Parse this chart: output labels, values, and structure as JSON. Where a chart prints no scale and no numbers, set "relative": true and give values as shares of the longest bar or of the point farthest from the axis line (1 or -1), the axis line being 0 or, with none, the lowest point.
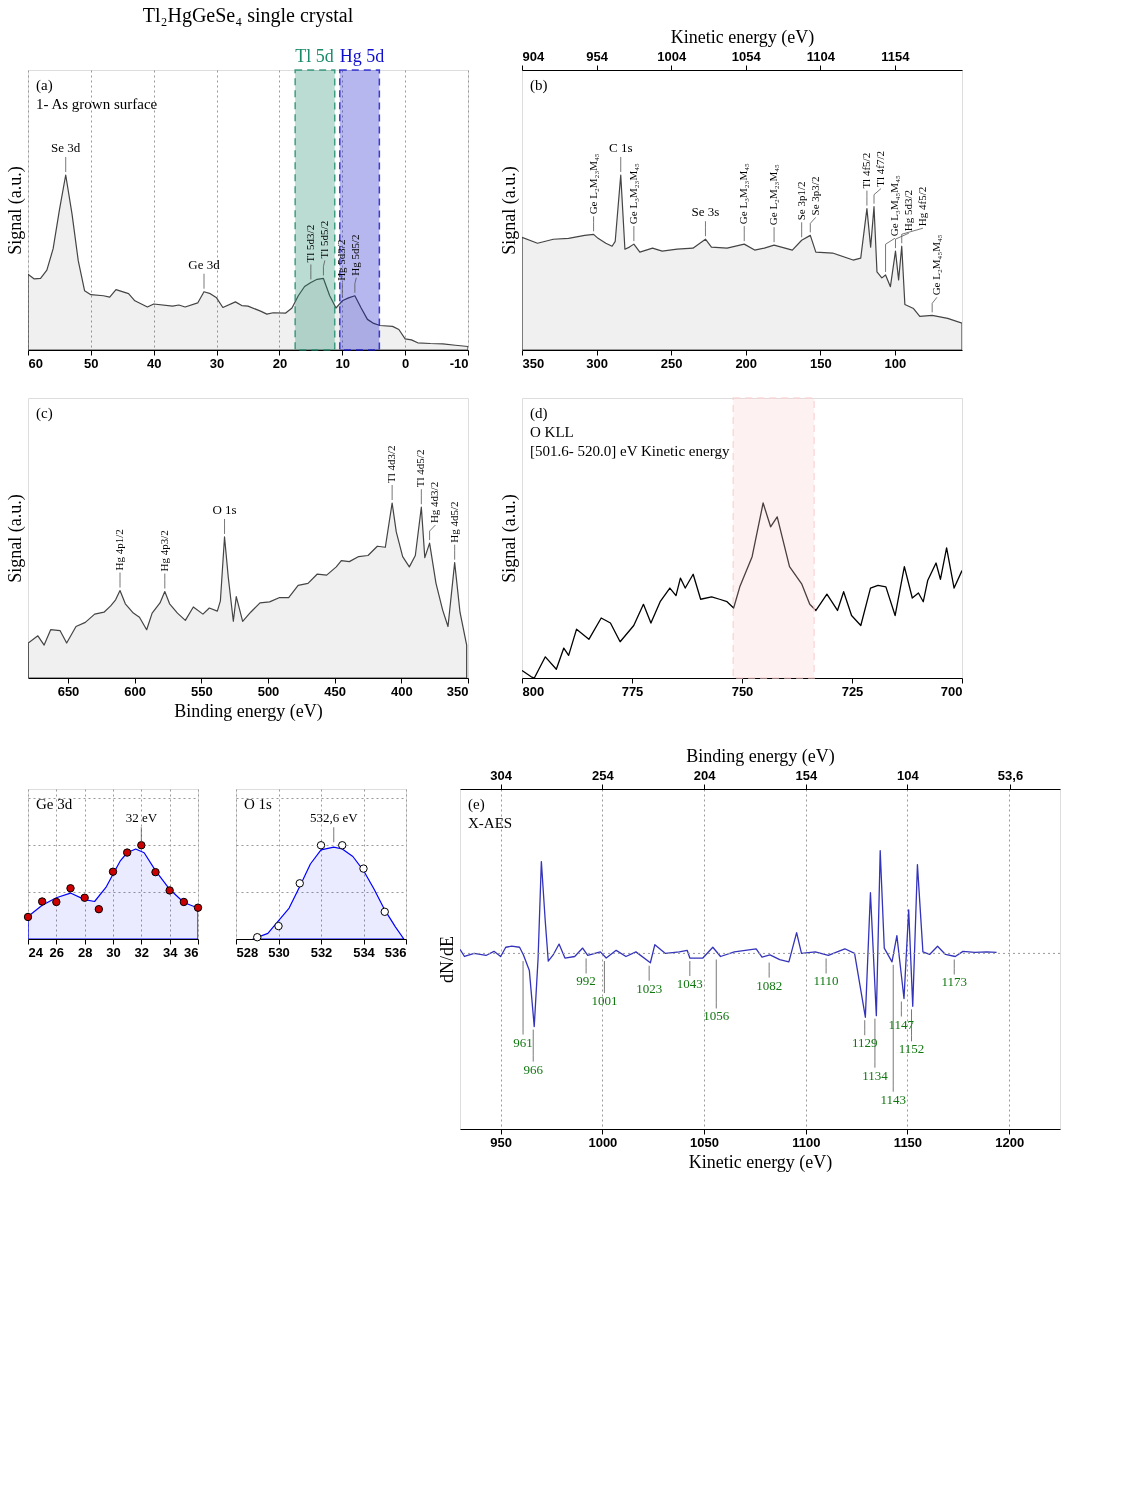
{
  "chart_data": [
    {
      "type": "area",
      "title": "Tl₂HgGeSe₄ single crystal",
      "ylabel": "Signal (a.u.)",
      "relative": true,
      "xlim": [
        60,
        -10
      ],
      "xticks": [
        60,
        50,
        40,
        30,
        20,
        10,
        0,
        -10
      ],
      "grid": "x",
      "series": [
        {
          "color": "#444444",
          "x": [
            60,
            59,
            58,
            57,
            56,
            55,
            54,
            53,
            52,
            51,
            50,
            48,
            47,
            46,
            44,
            43,
            41,
            40,
            37,
            36,
            35,
            33,
            32,
            31,
            30,
            29,
            27,
            26,
            25,
            23,
            22,
            21,
            19,
            18,
            17,
            16,
            15,
            14,
            13,
            12,
            11,
            10,
            9,
            8,
            7,
            6,
            5,
            4,
            2,
            1,
            0,
            -1,
            -2,
            -4,
            -6,
            -8,
            -10
          ],
          "values": [
            0.433,
            0.406,
            0.409,
            0.456,
            0.579,
            0.801,
            1.0,
            0.778,
            0.509,
            0.339,
            0.316,
            0.31,
            0.302,
            0.345,
            0.322,
            0.281,
            0.246,
            0.263,
            0.251,
            0.257,
            0.246,
            0.269,
            0.333,
            0.322,
            0.298,
            0.243,
            0.275,
            0.254,
            0.251,
            0.222,
            0.205,
            0.213,
            0.211,
            0.24,
            0.31,
            0.363,
            0.386,
            0.404,
            0.409,
            0.31,
            0.24,
            0.281,
            0.298,
            0.31,
            0.24,
            0.175,
            0.152,
            0.14,
            0.135,
            0.117,
            0.064,
            0.058,
            0.041,
            0.037,
            0.035,
            0.027,
            0.02
          ]
        }
      ],
      "bands": [
        {
          "axis": "x",
          "from": 17.5,
          "to": 11.2,
          "label": "Tl 5d",
          "color": "#1a8a6a"
        },
        {
          "axis": "x",
          "from": 10.4,
          "to": 4.1,
          "label": "Hg 5d",
          "color": "#1010cc"
        }
      ],
      "annotations": [
        "(a)",
        "1- As grown surface",
        {
          "text": "Se 3d",
          "x": 54,
          "y": 1.0
        },
        {
          "text": "Ge 3d",
          "x": 32,
          "y": 0.333
        },
        {
          "text": "Tl 5d3/2",
          "x": 15,
          "y": 0.386
        },
        {
          "text": "Tl 5d5/2",
          "x": 13,
          "y": 0.409
        },
        {
          "text": "Hg 5d3/2",
          "x": 10,
          "y": 0.281
        },
        {
          "text": "Hg 5d5/2",
          "x": 8,
          "y": 0.31
        }
      ]
    },
    {
      "type": "area",
      "ylabel": "Signal (a.u.)",
      "relative": true,
      "xlim": [
        350,
        55
      ],
      "xticks": [
        350,
        300,
        250,
        200,
        150,
        100
      ],
      "x2lim": [
        904,
        1199
      ],
      "x2ticks": [
        904,
        954,
        1004,
        1054,
        1104,
        1154
      ],
      "x2label": "Kinetic energy (eV)",
      "series": [
        {
          "color": "#444444",
          "x": [
            350,
            339.6,
            329,
            318.8,
            308,
            302,
            299,
            293.8,
            289.6,
            287.5,
            283.8,
            281,
            278,
            275,
            271,
            262.5,
            256,
            246,
            235.4,
            227,
            223,
            212.5,
            201,
            194,
            187.5,
            181,
            168.75,
            162.5,
            156.7,
            153,
            141.7,
            128,
            122.9,
            118.75,
            116.25,
            114,
            112,
            108.75,
            106.25,
            103,
            99.6,
            97.5,
            95.4,
            93.3,
            87.5,
            83.3,
            75,
            64.6,
            55
          ],
          "values": [
            0.644,
            0.61,
            0.633,
            0.638,
            0.655,
            0.661,
            0.638,
            0.61,
            0.593,
            0.621,
            1.0,
            0.576,
            0.588,
            0.605,
            0.559,
            0.582,
            0.565,
            0.576,
            0.582,
            0.633,
            0.588,
            0.582,
            0.605,
            0.571,
            0.582,
            0.599,
            0.571,
            0.627,
            0.655,
            0.559,
            0.554,
            0.514,
            0.525,
            0.808,
            0.588,
            0.819,
            0.446,
            0.412,
            0.429,
            0.362,
            0.565,
            0.401,
            0.593,
            0.26,
            0.237,
            0.192,
            0.198,
            0.181,
            0.153
          ]
        }
      ],
      "annotations": [
        "(b)",
        {
          "text": "Ge L₂M₂₃M₄₅",
          "x": 302,
          "y": 0.661
        },
        {
          "text": "C 1s",
          "x": 283.8,
          "y": 1.0
        },
        {
          "text": "Ge L₃M₂₃M₄₅",
          "x": 275,
          "y": 0.605
        },
        {
          "text": "Se 3s",
          "x": 227,
          "y": 0.633
        },
        {
          "text": "Ge L₃M₂₃M₄₅",
          "x": 201,
          "y": 0.605
        },
        {
          "text": "Ge L₂M₂₃M₄₅",
          "x": 181,
          "y": 0.599
        },
        {
          "text": "Se 3p1/2",
          "x": 162.5,
          "y": 0.627
        },
        {
          "text": "Se 3p3/2",
          "x": 156.7,
          "y": 0.655
        },
        {
          "text": "Tl 4f5/2",
          "x": 118.75,
          "y": 0.808
        },
        {
          "text": "Tl 4f7/2",
          "x": 114,
          "y": 0.819
        },
        {
          "text": "Ge L₃M₄₅M₄₅",
          "x": 106.25,
          "y": 0.429
        },
        {
          "text": "Hg 5d3/2",
          "x": 99.6,
          "y": 0.565
        },
        {
          "text": "Hg 4f5/2",
          "x": 95.4,
          "y": 0.593
        },
        {
          "text": "Ge L₂M₄₅M₄₅",
          "x": 75,
          "y": 0.198
        }
      ]
    },
    {
      "type": "area",
      "ylabel": "Signal (a.u.)",
      "xlabel": "Binding energy (eV)",
      "relative": true,
      "xlim": [
        680,
        350
      ],
      "xticks": [
        650,
        600,
        550,
        500,
        450,
        400,
        350
      ],
      "series": [
        {
          "color": "#444444",
          "x": [
            679.8,
            672.6,
            667.9,
            663,
            656,
            651,
            644,
            637,
            630,
            623,
            618,
            614.3,
            611,
            607,
            601,
            596.4,
            591,
            586.9,
            581,
            577.4,
            573.8,
            567.9,
            562,
            556,
            548.8,
            544,
            538,
            535.7,
            532.6,
            529.8,
            526,
            523.8,
            519,
            513,
            506,
            498.8,
            491.7,
            484.5,
            477.4,
            470,
            463,
            456,
            448.8,
            445,
            439,
            432,
            425,
            418,
            412,
            406.9,
            403.8,
            399,
            394,
            389.5,
            385,
            382.4,
            378.8,
            374,
            369,
            365,
            360,
            356,
            351
          ],
          "values": [
            0.2,
            0.241,
            0.188,
            0.276,
            0.271,
            0.2,
            0.294,
            0.318,
            0.365,
            0.376,
            0.412,
            0.447,
            0.5,
            0.424,
            0.371,
            0.347,
            0.276,
            0.371,
            0.429,
            0.494,
            0.424,
            0.371,
            0.329,
            0.406,
            0.365,
            0.4,
            0.382,
            0.441,
            0.806,
            0.576,
            0.324,
            0.465,
            0.324,
            0.376,
            0.429,
            0.435,
            0.459,
            0.459,
            0.529,
            0.541,
            0.594,
            0.588,
            0.635,
            0.671,
            0.665,
            0.694,
            0.7,
            0.753,
            0.747,
            1.0,
            0.835,
            0.694,
            0.635,
            0.7,
            0.976,
            0.688,
            0.771,
            0.541,
            0.388,
            0.294,
            0.659,
            0.376,
            0.188
          ]
        }
      ],
      "annotations": [
        "(c)",
        {
          "text": "Hg 4p1/2",
          "x": 611,
          "y": 0.5
        },
        {
          "text": "Hg 4p3/2",
          "x": 577.4,
          "y": 0.494
        },
        {
          "text": "O 1s",
          "x": 532.6,
          "y": 0.806
        },
        {
          "text": "Tl 4d3/2",
          "x": 406.9,
          "y": 1.0
        },
        {
          "text": "Tl 4d5/2",
          "x": 385,
          "y": 0.976
        },
        {
          "text": "Hg 4d3/2",
          "x": 378.8,
          "y": 0.771
        },
        {
          "text": "Hg 4d5/2",
          "x": 360,
          "y": 0.659
        }
      ]
    },
    {
      "type": "line",
      "ylabel": "Signal (a.u.)",
      "relative": true,
      "xlim": [
        800,
        700
      ],
      "xticks": [
        800,
        775,
        750,
        725,
        700
      ],
      "series": [
        {
          "color": "#000000",
          "x": [
            800,
            797.9,
            797.2,
            794.7,
            792.2,
            790.5,
            789.4,
            787.6,
            784.8,
            782,
            779.9,
            777.7,
            774.6,
            772.4,
            770.7,
            768.6,
            766.4,
            765,
            764,
            762.9,
            761.1,
            759.4,
            756.9,
            755.1,
            753.4,
            751.9,
            750.5,
            747.7,
            745.2,
            743.5,
            742,
            739.2,
            736.4,
            734.6,
            733.2,
            730.7,
            728.3,
            726.9,
            725.1,
            723,
            720.8,
            719.1,
            717.3,
            715.2,
            713.1,
            711.3,
            709.9,
            708.8,
            707.8,
            705.9,
            704.9,
            703.5,
            701.8,
            700
          ],
          "values": [
            0.043,
            0.007,
            0,
            0.121,
            0.05,
            0.171,
            0.129,
            0.279,
            0.221,
            0.343,
            0.314,
            0.207,
            0.3,
            0.421,
            0.314,
            0.436,
            0.514,
            0.471,
            0.571,
            0.514,
            0.593,
            0.45,
            0.464,
            0.45,
            0.436,
            0.4,
            0.521,
            0.693,
            1.0,
            0.864,
            0.921,
            0.636,
            0.536,
            0.421,
            0.386,
            0.479,
            0.386,
            0.493,
            0.357,
            0.3,
            0.514,
            0.529,
            0.521,
            0.357,
            0.636,
            0.457,
            0.486,
            0.436,
            0.557,
            0.657,
            0.564,
            0.743,
            0.514,
            0.614
          ]
        }
      ],
      "bands": [
        {
          "axis": "x",
          "from": 752,
          "to": 733.6,
          "color": "#f9d2d2"
        }
      ],
      "annotations": [
        "(d)",
        "O KLL",
        "[501.6- 520.0] eV Kinetic energy"
      ]
    },
    {
      "type": "area",
      "relative": true,
      "xlim": [
        24,
        36
      ],
      "xticks": [
        24,
        26,
        28,
        30,
        32,
        34,
        36
      ],
      "grid": true,
      "series": [
        {
          "type": "area",
          "color": "#0000ff",
          "x": [
            24,
            25,
            26,
            27,
            28,
            28.7,
            29.5,
            30,
            30.5,
            31,
            31.6,
            32.2,
            33,
            34,
            35,
            36
          ],
          "values": [
            0.24,
            0.36,
            0.44,
            0.49,
            0.42,
            0.4,
            0.55,
            0.69,
            0.83,
            0.92,
            0.96,
            0.92,
            0.73,
            0.53,
            0.39,
            0.33
          ]
        },
        {
          "type": "scatter",
          "marker": "circle",
          "color": "#cc0000",
          "x": [
            24,
            25,
            26,
            27,
            28,
            29,
            30,
            31,
            32,
            33,
            34,
            35,
            36
          ],
          "values": [
            0.235,
            0.4,
            0.395,
            0.541,
            0.44,
            0.318,
            0.718,
            0.922,
            1.0,
            0.713,
            0.518,
            0.395,
            0.334
          ]
        }
      ],
      "annotations": [
        "Ge 3d",
        {
          "text": "32 eV",
          "x": 32,
          "y": 1.0
        }
      ]
    },
    {
      "type": "area",
      "relative": true,
      "xlim": [
        528,
        536
      ],
      "xticks": [
        528,
        530,
        532,
        534,
        536
      ],
      "grid": true,
      "series": [
        {
          "type": "area",
          "color": "#0000ff",
          "x": [
            528.8,
            529.5,
            530.5,
            531,
            531.5,
            532,
            532.6,
            533,
            533.5,
            534,
            534.5,
            535,
            535.5,
            535.9
          ],
          "values": [
            0,
            0.06,
            0.33,
            0.56,
            0.8,
            0.95,
            0.98,
            0.96,
            0.88,
            0.73,
            0.53,
            0.31,
            0.13,
            0
          ]
        },
        {
          "type": "scatter",
          "marker": "circle",
          "color": "#ffffff",
          "x": [
            529,
            530,
            531,
            532,
            533,
            534,
            535
          ],
          "values": [
            0.019,
            0.138,
            0.594,
            1.0,
            1.0,
            0.751,
            0.29
          ]
        }
      ],
      "annotations": [
        "O 1s",
        {
          "text": "532,6 eV",
          "x": 532.6,
          "y": 1.0
        }
      ]
    },
    {
      "type": "line",
      "ylabel": "dN/dE",
      "xlabel": "Kinetic energy (eV)",
      "x2label": "Binding energy (eV)",
      "relative": true,
      "xlim": [
        930,
        1225
      ],
      "xticks": [
        950,
        1000,
        1050,
        1100,
        1150,
        1200
      ],
      "x2lim": [
        324,
        29
      ],
      "x2ticks": [
        304,
        254,
        204,
        154,
        104,
        {
          "value": 53.6,
          "label": "53,6"
        }
      ],
      "grid": "x",
      "series": [
        {
          "color": "#3333bb",
          "x": [
            930,
            932.2,
            937,
            942.8,
            946.7,
            950,
            952.5,
            955.4,
            959.3,
            961.2,
            964.1,
            966.5,
            968.4,
            970,
            971.9,
            973.4,
            975.8,
            978.7,
            981.6,
            986.4,
            990.3,
            992.8,
            999,
            1001.9,
            1006.8,
            1011.6,
            1016.5,
            1023.6,
            1025.8,
            1031,
            1037.8,
            1041.7,
            1043,
            1049.4,
            1054.3,
            1058.1,
            1064.9,
            1075.6,
            1078.5,
            1082.4,
            1087.2,
            1091.7,
            1095.5,
            1097.9,
            1104.7,
            1111.1,
            1119.2,
            1124,
            1129.3,
            1131.8,
            1134.7,
            1136.6,
            1138.6,
            1142.4,
            1144.8,
            1148.3,
            1150.6,
            1152.6,
            1154.9,
            1157.6,
            1160.9,
            1164.8,
            1168.7,
            1173.5,
            1177.3,
            1183.1,
            1189,
            1193.8
          ],
          "values": [
            0.039,
            -0.03,
            0,
            -0.02,
            0.02,
            -0.03,
            0.06,
            0.07,
            0.06,
            -0.015,
            -0.167,
            -0.712,
            -0.045,
            0.894,
            0.318,
            -0.076,
            -0.015,
            0.091,
            -0.045,
            -0.03,
            0.052,
            -0.02,
            0.015,
            -0.045,
            0.03,
            -0.03,
            0.015,
            -0.091,
            0.085,
            0,
            0.015,
            0.03,
            -0.045,
            -0.045,
            0.06,
            -0.03,
            0.015,
            0.045,
            -0.036,
            -0.015,
            -0.06,
            -0.082,
            0.203,
            0,
            0.015,
            -0.02,
            0.045,
            0,
            -0.621,
            0.591,
            -0.606,
            1.0,
            0.052,
            -0.082,
            0.173,
            -0.439,
            0.424,
            -0.515,
            0.864,
            0.015,
            -0.01,
            0.07,
            -0.01,
            -0.03,
            0.02,
            0.01,
            0.015,
            0.01
          ]
        }
      ],
      "ref_lines": [
        {
          "axis": "y",
          "value": 0,
          "color": "#999999",
          "line_style": "dotted"
        }
      ],
      "annotations": [
        "(e)",
        "X-AES",
        {
          "text": "961",
          "x": 961,
          "y": -0.045
        },
        {
          "text": "966",
          "x": 966,
          "y": -0.712
        },
        {
          "text": "992",
          "x": 992,
          "y": -0.02
        },
        {
          "text": "1001",
          "x": 1001,
          "y": -0.045
        },
        {
          "text": "1023",
          "x": 1023,
          "y": -0.091
        },
        {
          "text": "1043",
          "x": 1043,
          "y": -0.045
        },
        {
          "text": "1056",
          "x": 1056,
          "y": -0.03
        },
        {
          "text": "1082",
          "x": 1082,
          "y": -0.06
        },
        {
          "text": "1110",
          "x": 1110,
          "y": -0.02
        },
        {
          "text": "1129",
          "x": 1129,
          "y": -0.621
        },
        {
          "text": "1134",
          "x": 1134,
          "y": -0.606
        },
        {
          "text": "1143",
          "x": 1143,
          "y": -0.082
        },
        {
          "text": "1147",
          "x": 1147,
          "y": -0.439
        },
        {
          "text": "1152",
          "x": 1152,
          "y": -0.515
        },
        {
          "text": "1173",
          "x": 1173,
          "y": -0.03
        }
      ]
    }
  ]
}
